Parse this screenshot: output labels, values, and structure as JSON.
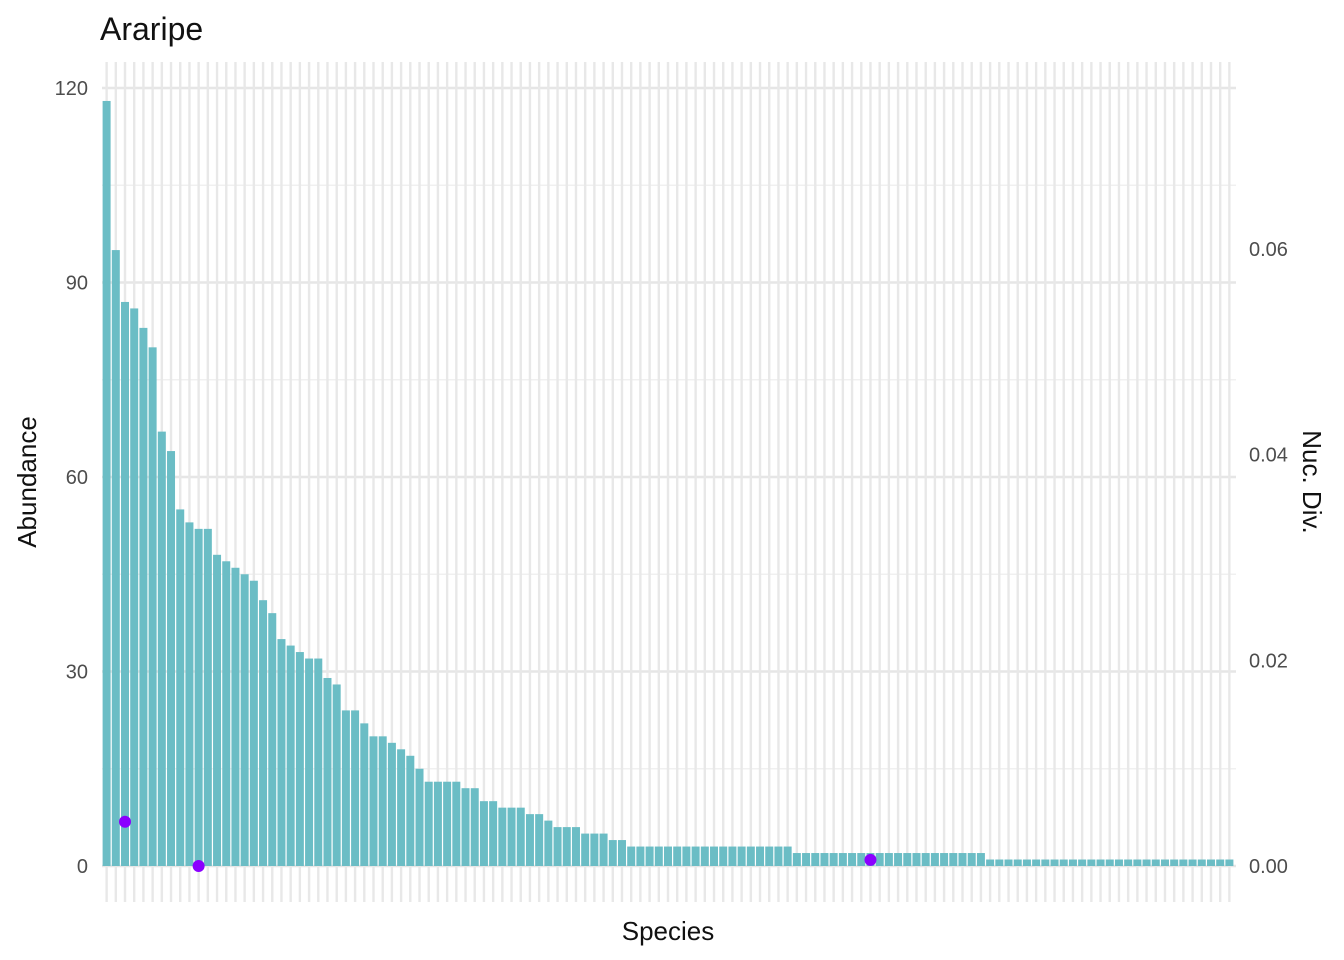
{
  "chart_data": {
    "type": "bar",
    "title": "Araripe",
    "xlabel": "Species",
    "ylabel": "Abundance",
    "y2label": "Nuc. Div.",
    "ylim": [
      0,
      120
    ],
    "y2lim": [
      0,
      0.06
    ],
    "yticks": [
      "0",
      "30",
      "60",
      "90",
      "120"
    ],
    "y2ticks": [
      "0.00",
      "0.02",
      "0.04",
      "0.06"
    ],
    "grid": true,
    "bar_color": "#6bbdc5",
    "point_color": "#8b00ff",
    "values": [
      118,
      95,
      87,
      86,
      83,
      80,
      67,
      64,
      55,
      53,
      52,
      52,
      48,
      47,
      46,
      45,
      44,
      41,
      39,
      35,
      34,
      33,
      32,
      32,
      29,
      28,
      24,
      24,
      22,
      20,
      20,
      19,
      18,
      17,
      15,
      13,
      13,
      13,
      13,
      12,
      12,
      10,
      10,
      9,
      9,
      9,
      8,
      8,
      7,
      6,
      6,
      6,
      5,
      5,
      5,
      4,
      4,
      3,
      3,
      3,
      3,
      3,
      3,
      3,
      3,
      3,
      3,
      3,
      3,
      3,
      3,
      3,
      3,
      3,
      3,
      2,
      2,
      2,
      2,
      2,
      2,
      2,
      2,
      2,
      2,
      2,
      2,
      2,
      2,
      2,
      2,
      2,
      2,
      2,
      2,
      2,
      1,
      1,
      1,
      1,
      1,
      1,
      1,
      1,
      1,
      1,
      1,
      1,
      1,
      1,
      1,
      1,
      1,
      1,
      1,
      1,
      1,
      1,
      1,
      1,
      1,
      1,
      1
    ],
    "nuc_div_points": [
      {
        "index": 2,
        "value": 0.0043
      },
      {
        "index": 10,
        "value": 0.0
      },
      {
        "index": 83,
        "value": 0.0006
      }
    ]
  }
}
